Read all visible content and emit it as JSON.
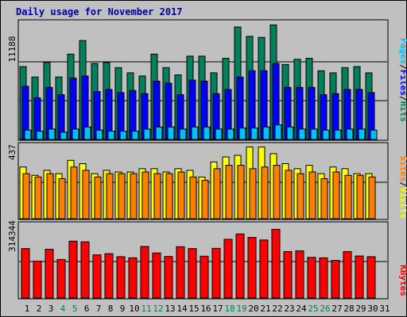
{
  "title": "Daily usage for November 2017",
  "colors": {
    "hits": "#00805c",
    "files": "#0000ff",
    "pages": "#00c0ff",
    "visits": "#ffff00",
    "sites": "#ff8000",
    "kbytes": "#ff0000",
    "weekday_label": "#000000",
    "weekend_label": "#00805c"
  },
  "chart_data": [
    {
      "type": "bar",
      "panel": "hits-files-pages",
      "y_max_label": "11188",
      "ylim": [
        0,
        11188
      ],
      "categories": [
        "1",
        "2",
        "3",
        "4",
        "5",
        "6",
        "7",
        "8",
        "9",
        "10",
        "11",
        "12",
        "13",
        "14",
        "15",
        "16",
        "17",
        "18",
        "19",
        "20",
        "21",
        "22",
        "23",
        "24",
        "25",
        "26",
        "27",
        "28",
        "29",
        "30",
        "31"
      ],
      "weekend_days": [
        4,
        5,
        11,
        12,
        18,
        19,
        25,
        26
      ],
      "legend": [
        "Pages",
        "Files",
        "Hits"
      ],
      "series": [
        {
          "name": "Hits",
          "values": [
            7000,
            6000,
            7400,
            6000,
            8200,
            9500,
            7300,
            7400,
            6900,
            6400,
            6100,
            8200,
            6900,
            6200,
            8000,
            8000,
            6400,
            7800,
            10800,
            9900,
            9800,
            11000,
            7200,
            7700,
            7800,
            6600,
            6400,
            6900,
            7000,
            6400,
            null
          ]
        },
        {
          "name": "Files",
          "values": [
            5100,
            4000,
            5000,
            4300,
            5900,
            6100,
            4600,
            4800,
            4500,
            4700,
            4400,
            5600,
            5400,
            4300,
            5700,
            5600,
            4400,
            4800,
            6000,
            6600,
            6600,
            7300,
            5000,
            5000,
            5000,
            4300,
            4400,
            4800,
            4800,
            4500,
            null
          ]
        },
        {
          "name": "Pages",
          "values": [
            900,
            800,
            1000,
            700,
            1000,
            1200,
            900,
            800,
            800,
            800,
            1000,
            1200,
            1200,
            1000,
            1200,
            1200,
            1000,
            1000,
            1100,
            1100,
            1200,
            1400,
            1200,
            1000,
            1000,
            900,
            900,
            1000,
            1000,
            900,
            null
          ]
        }
      ]
    },
    {
      "type": "bar",
      "panel": "visits-sites",
      "y_max_label": "437",
      "ylim": [
        0,
        437
      ],
      "categories": [
        "1",
        "2",
        "3",
        "4",
        "5",
        "6",
        "7",
        "8",
        "9",
        "10",
        "11",
        "12",
        "13",
        "14",
        "15",
        "16",
        "17",
        "18",
        "19",
        "20",
        "21",
        "22",
        "23",
        "24",
        "25",
        "26",
        "27",
        "28",
        "29",
        "30",
        "31"
      ],
      "legend": [
        "Sites",
        "Visits"
      ],
      "series": [
        {
          "name": "Visits",
          "values": [
            310,
            260,
            290,
            270,
            350,
            330,
            270,
            290,
            280,
            280,
            300,
            300,
            280,
            300,
            290,
            250,
            340,
            370,
            380,
            430,
            430,
            390,
            330,
            300,
            320,
            270,
            310,
            300,
            270,
            270,
            null
          ]
        },
        {
          "name": "Sites",
          "values": [
            270,
            250,
            270,
            240,
            310,
            290,
            250,
            270,
            270,
            270,
            280,
            270,
            270,
            280,
            250,
            230,
            300,
            320,
            320,
            300,
            310,
            320,
            290,
            270,
            280,
            240,
            280,
            260,
            260,
            250,
            null
          ]
        }
      ]
    },
    {
      "type": "bar",
      "panel": "kbytes",
      "y_max_label": "314344",
      "ylim": [
        0,
        314344
      ],
      "categories": [
        "1",
        "2",
        "3",
        "4",
        "5",
        "6",
        "7",
        "8",
        "9",
        "10",
        "11",
        "12",
        "13",
        "14",
        "15",
        "16",
        "17",
        "18",
        "19",
        "20",
        "21",
        "22",
        "23",
        "24",
        "25",
        "26",
        "27",
        "28",
        "29",
        "30",
        "31"
      ],
      "legend": [
        "KBytes"
      ],
      "series": [
        {
          "name": "KBytes",
          "values": [
            213000,
            159000,
            210000,
            166000,
            245000,
            242000,
            186000,
            191000,
            178000,
            173000,
            222000,
            194000,
            179000,
            221000,
            213000,
            180000,
            214000,
            253000,
            276000,
            261000,
            250000,
            296000,
            200000,
            203000,
            175000,
            173000,
            162000,
            200000,
            181000,
            178000,
            null
          ]
        }
      ]
    }
  ]
}
